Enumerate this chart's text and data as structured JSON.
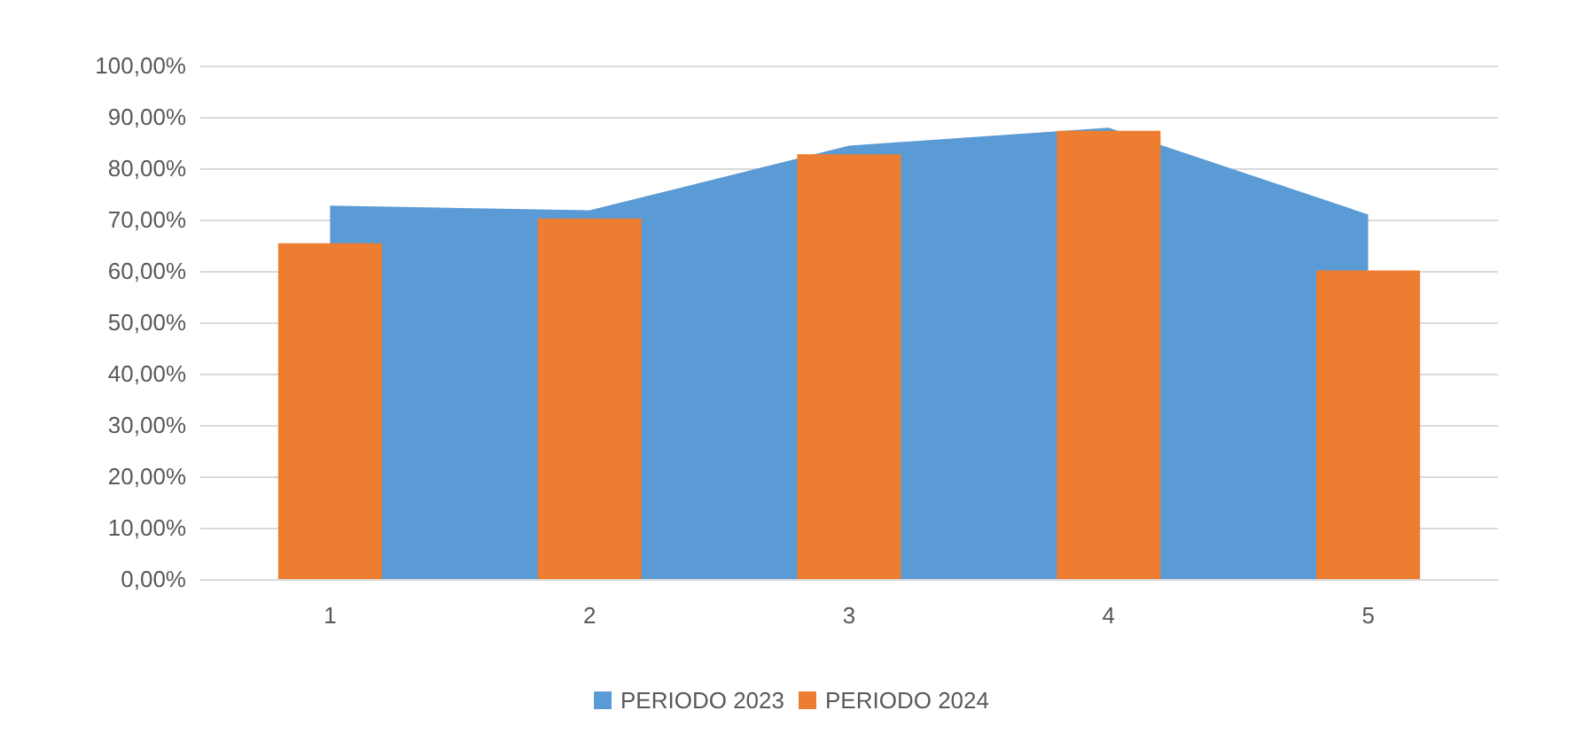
{
  "chart_data": {
    "type": "bar",
    "categories": [
      "1",
      "2",
      "3",
      "4",
      "5"
    ],
    "series": [
      {
        "name": "PERIODO 2023",
        "type": "area",
        "color": "#5b9bd5",
        "values": [
          72.7,
          71.8,
          84.4,
          87.9,
          71.0
        ]
      },
      {
        "name": "PERIODO 2024",
        "color": "#ed7d31",
        "values": [
          65.4,
          70.2,
          82.7,
          87.3,
          60.1
        ]
      }
    ],
    "ylim": [
      0,
      100
    ],
    "yticks": [
      {
        "value": 0,
        "label": "0,00%"
      },
      {
        "value": 10,
        "label": "10,00%"
      },
      {
        "value": 20,
        "label": "20,00%"
      },
      {
        "value": 30,
        "label": "30,00%"
      },
      {
        "value": 40,
        "label": "40,00%"
      },
      {
        "value": 50,
        "label": "50,00%"
      },
      {
        "value": 60,
        "label": "60,00%"
      },
      {
        "value": 70,
        "label": "70,00%"
      },
      {
        "value": 80,
        "label": "80,00%"
      },
      {
        "value": 90,
        "label": "90,00%"
      },
      {
        "value": 100,
        "label": "100,00%"
      }
    ],
    "grid": "y",
    "legend": "bottom"
  }
}
